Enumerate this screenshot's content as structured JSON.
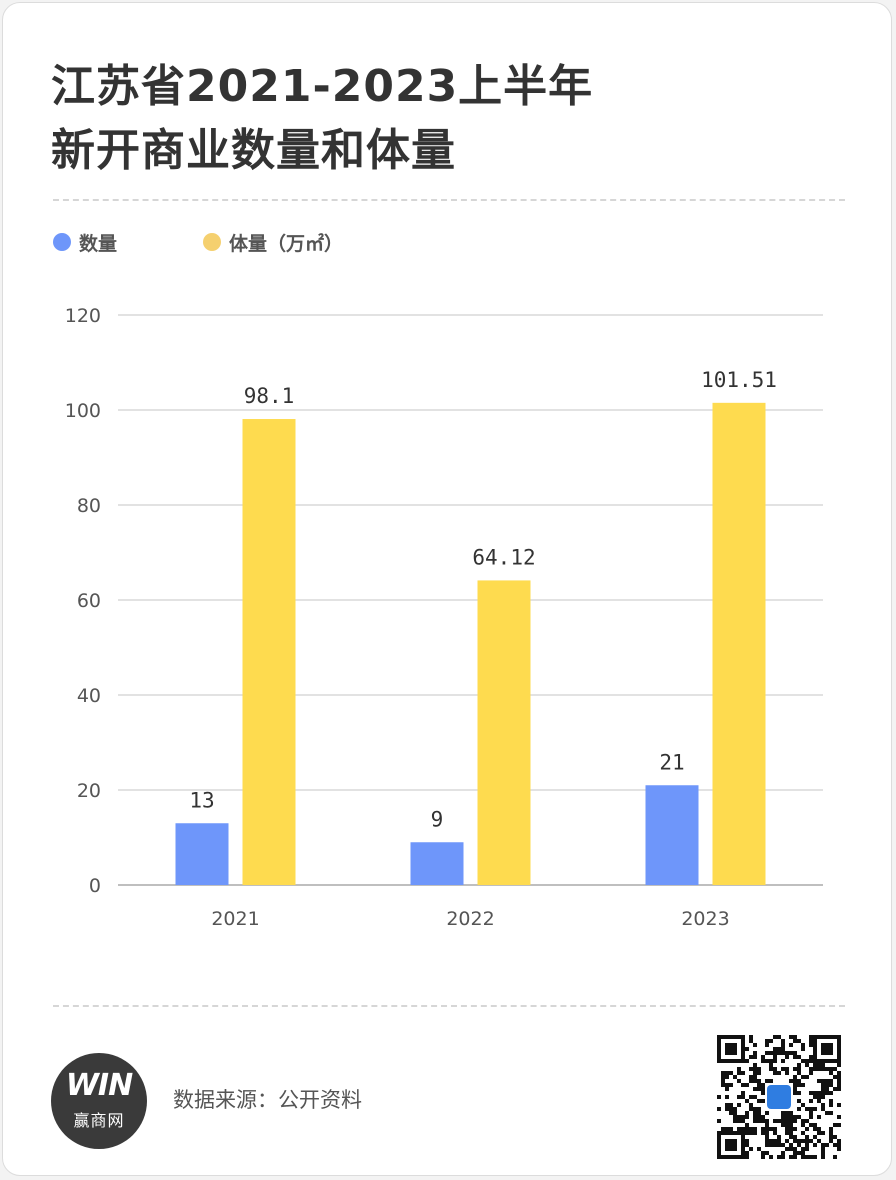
{
  "title_lines": [
    "江苏省2021-2023上半年",
    "新开商业数量和体量"
  ],
  "source": "数据来源：公开资料",
  "logo": {
    "mark": "WIN",
    "text": "赢商网"
  },
  "colors": {
    "count": "#6e96fa",
    "area": "#fedb4f",
    "grid": "#d9d9d9",
    "axis": "#bfbfbf"
  },
  "icons": [
    "qr-code-icon",
    "logo-icon"
  ],
  "chart_data": {
    "type": "bar",
    "categories": [
      "2021",
      "2022",
      "2023"
    ],
    "series": [
      {
        "name": "数量",
        "values": [
          13,
          9,
          21
        ],
        "labels": [
          "13",
          "9",
          "21"
        ],
        "color": "#6e96fa"
      },
      {
        "name": "体量（万㎡）",
        "values": [
          98.1,
          64.12,
          101.51
        ],
        "labels": [
          "98.1",
          "64.12",
          "101.51"
        ],
        "color": "#fedb4f"
      }
    ],
    "title": "江苏省2021-2023上半年新开商业数量和体量",
    "xlabel": "",
    "ylabel": "",
    "ylim": [
      0,
      120
    ],
    "yticks": [
      0,
      20,
      40,
      60,
      80,
      100,
      120
    ],
    "grid": true,
    "legend_position": "top-left"
  }
}
